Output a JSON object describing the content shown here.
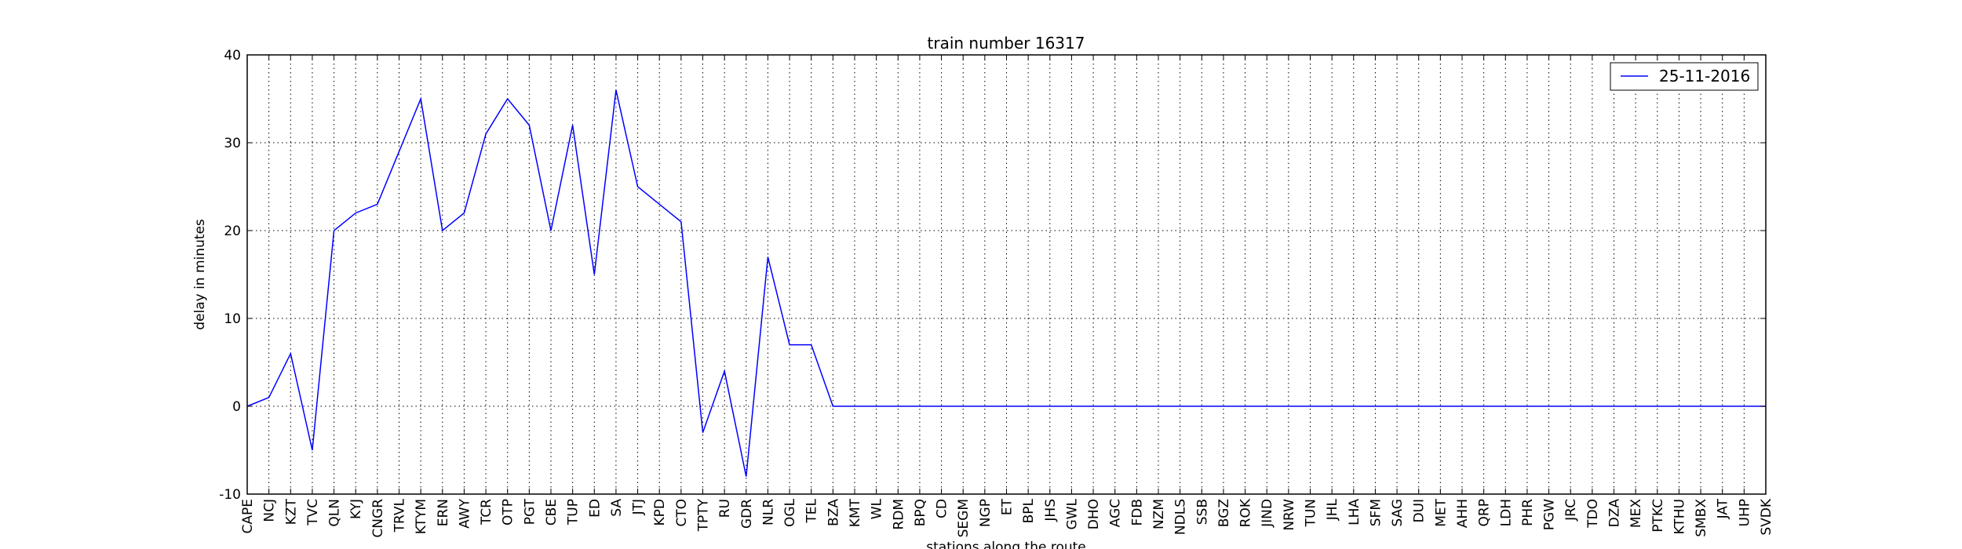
{
  "chart_data": {
    "type": "line",
    "title": "train number 16317",
    "xlabel": "stations along the route",
    "ylabel": "delay in minutes",
    "ylim": [
      -10,
      40
    ],
    "yticks": [
      -10,
      0,
      10,
      20,
      30,
      40
    ],
    "grid": true,
    "legend_position": "top-right",
    "categories": [
      "CAPE",
      "NCJ",
      "KZT",
      "TVC",
      "QLN",
      "KYJ",
      "CNGR",
      "TRVL",
      "KTYM",
      "ERN",
      "AWY",
      "TCR",
      "OTP",
      "PGT",
      "CBE",
      "TUP",
      "ED",
      "SA",
      "JTJ",
      "KPD",
      "CTO",
      "TPTY",
      "RU",
      "GDR",
      "NLR",
      "OGL",
      "TEL",
      "BZA",
      "KMT",
      "WL",
      "RDM",
      "BPQ",
      "CD",
      "SEGM",
      "NGP",
      "ET",
      "BPL",
      "JHS",
      "GWL",
      "DHO",
      "AGC",
      "FDB",
      "NZM",
      "NDLS",
      "SSB",
      "BGZ",
      "ROK",
      "JIND",
      "NRW",
      "TUN",
      "JHL",
      "LHA",
      "SFM",
      "SAG",
      "DUI",
      "MET",
      "AHH",
      "QRP",
      "LDH",
      "PHR",
      "PGW",
      "JRC",
      "TDO",
      "DZA",
      "MEX",
      "PTKC",
      "KTHU",
      "SMBX",
      "JAT",
      "UHP",
      "SVDK"
    ],
    "series": [
      {
        "name": "25-11-2016",
        "color": "#0000ff",
        "values": [
          0,
          1,
          6,
          -5,
          20,
          22,
          23,
          29,
          35,
          20,
          22,
          31,
          35,
          32,
          20,
          32,
          15,
          36,
          25,
          23,
          21,
          -3,
          4,
          -8,
          17,
          7,
          7,
          0,
          0,
          0,
          0,
          0,
          0,
          0,
          0,
          0,
          0,
          0,
          0,
          0,
          0,
          0,
          0,
          0,
          0,
          0,
          0,
          0,
          0,
          0,
          0,
          0,
          0,
          0,
          0,
          0,
          0,
          0,
          0,
          0,
          0,
          0,
          0,
          0,
          0,
          0,
          0,
          0,
          0,
          0,
          0
        ]
      }
    ]
  }
}
